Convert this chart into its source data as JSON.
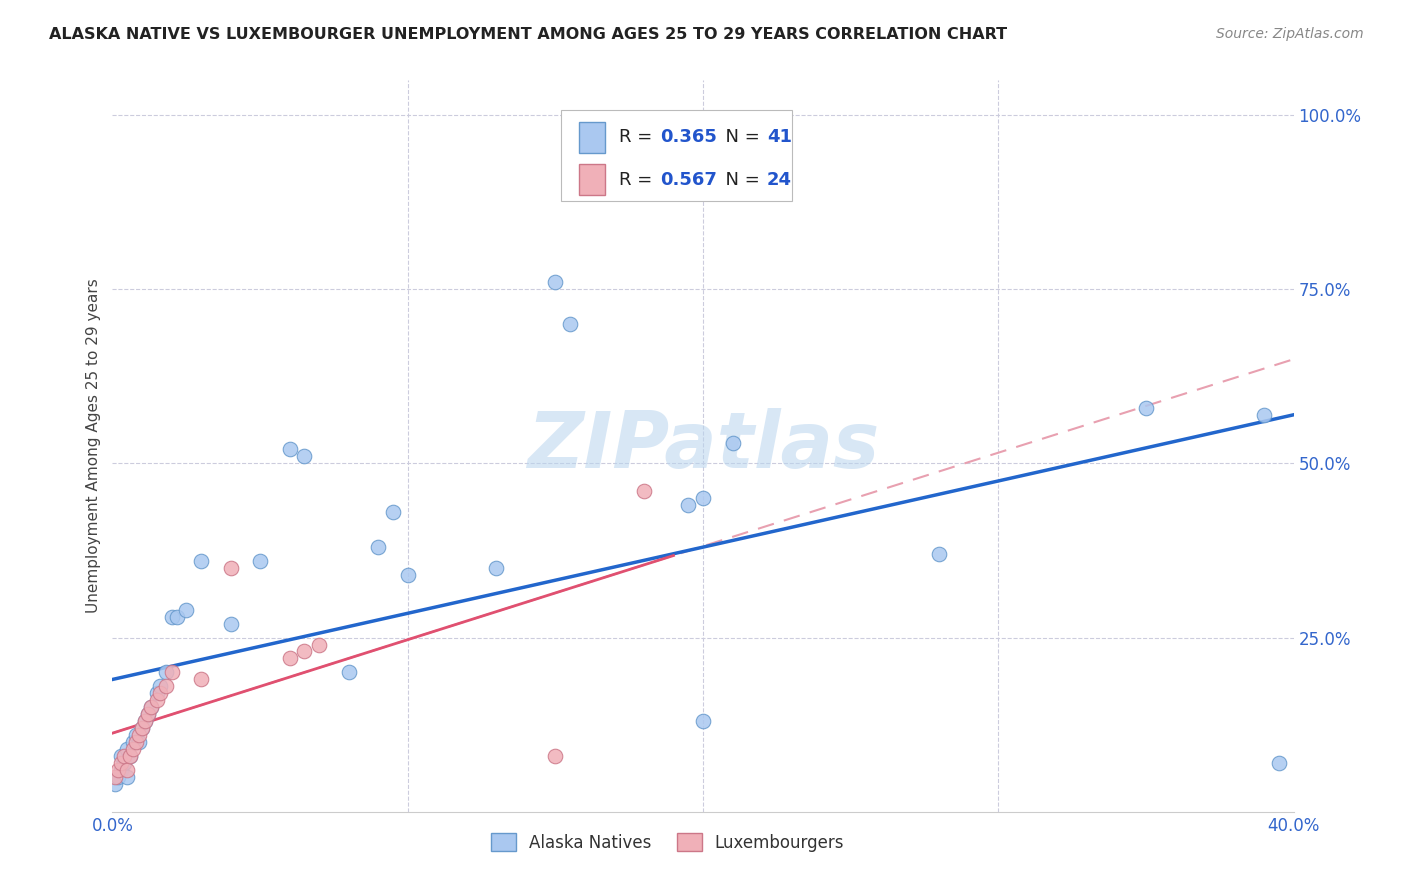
{
  "title": "ALASKA NATIVE VS LUXEMBOURGER UNEMPLOYMENT AMONG AGES 25 TO 29 YEARS CORRELATION CHART",
  "source": "Source: ZipAtlas.com",
  "ylabel": "Unemployment Among Ages 25 to 29 years",
  "xlim": [
    0.0,
    0.4
  ],
  "ylim": [
    0.0,
    1.05
  ],
  "yticks": [
    0.0,
    0.25,
    0.5,
    0.75,
    1.0
  ],
  "ytick_labels": [
    "",
    "25.0%",
    "50.0%",
    "75.0%",
    "100.0%"
  ],
  "xticks": [
    0.0,
    0.1,
    0.2,
    0.3,
    0.4
  ],
  "xtick_labels": [
    "0.0%",
    "",
    "",
    "",
    "40.0%"
  ],
  "alaska_color": "#aac8f0",
  "alaska_edge_color": "#6699cc",
  "luxembourger_color": "#f0b0b8",
  "luxembourger_edge_color": "#cc7788",
  "trend_alaska_color": "#2266cc",
  "trend_luxembourger_color": "#e05070",
  "trend_lux_dashed_color": "#e8a0b0",
  "background_color": "#ffffff",
  "watermark": "ZIPatlas",
  "R_alaska": 0.365,
  "N_alaska": 41,
  "R_luxembourger": 0.567,
  "N_luxembourger": 24,
  "alaska_x": [
    0.001,
    0.002,
    0.003,
    0.003,
    0.004,
    0.005,
    0.005,
    0.006,
    0.007,
    0.008,
    0.009,
    0.01,
    0.011,
    0.012,
    0.013,
    0.015,
    0.016,
    0.018,
    0.02,
    0.022,
    0.025,
    0.03,
    0.04,
    0.05,
    0.06,
    0.065,
    0.08,
    0.09,
    0.095,
    0.1,
    0.13,
    0.15,
    0.155,
    0.195,
    0.2,
    0.21,
    0.28,
    0.35,
    0.39,
    0.395,
    0.2
  ],
  "alaska_y": [
    0.04,
    0.05,
    0.06,
    0.08,
    0.07,
    0.05,
    0.09,
    0.08,
    0.1,
    0.11,
    0.1,
    0.12,
    0.13,
    0.14,
    0.15,
    0.17,
    0.18,
    0.2,
    0.28,
    0.28,
    0.29,
    0.36,
    0.27,
    0.36,
    0.52,
    0.51,
    0.2,
    0.38,
    0.43,
    0.34,
    0.35,
    0.76,
    0.7,
    0.44,
    0.45,
    0.53,
    0.37,
    0.58,
    0.57,
    0.07,
    0.13
  ],
  "luxembourger_x": [
    0.001,
    0.002,
    0.003,
    0.004,
    0.005,
    0.006,
    0.007,
    0.008,
    0.009,
    0.01,
    0.011,
    0.012,
    0.013,
    0.015,
    0.016,
    0.018,
    0.02,
    0.03,
    0.04,
    0.06,
    0.065,
    0.07,
    0.15,
    0.18
  ],
  "luxembourger_y": [
    0.05,
    0.06,
    0.07,
    0.08,
    0.06,
    0.08,
    0.09,
    0.1,
    0.11,
    0.12,
    0.13,
    0.14,
    0.15,
    0.16,
    0.17,
    0.18,
    0.2,
    0.19,
    0.35,
    0.22,
    0.23,
    0.24,
    0.08,
    0.46
  ]
}
